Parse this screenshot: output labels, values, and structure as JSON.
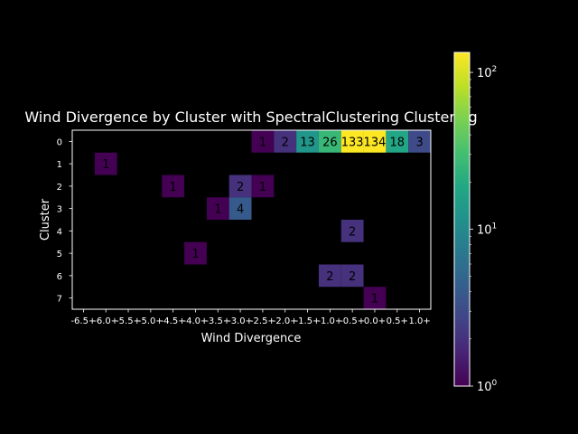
{
  "chart_data": {
    "type": "heatmap",
    "title": "Wind Divergence by Cluster with SpectralClustering Clustering",
    "xlabel": "Wind Divergence",
    "ylabel": "Cluster",
    "x_categories": [
      "-6.5+",
      "-6.0+",
      "-5.5+",
      "-5.0+",
      "-4.5+",
      "-4.0+",
      "-3.5+",
      "-3.0+",
      "-2.5+",
      "-2.0+",
      "-1.5+",
      "-1.0+",
      "-0.5+",
      "0.0+",
      "0.5+",
      "1.0+"
    ],
    "y_categories": [
      "0",
      "1",
      "2",
      "3",
      "4",
      "5",
      "6",
      "7"
    ],
    "cells": [
      {
        "row": "0",
        "col": "-2.5+",
        "value": 1
      },
      {
        "row": "0",
        "col": "-2.0+",
        "value": 2
      },
      {
        "row": "0",
        "col": "-1.5+",
        "value": 13
      },
      {
        "row": "0",
        "col": "-1.0+",
        "value": 26
      },
      {
        "row": "0",
        "col": "-0.5+",
        "value": 133
      },
      {
        "row": "0",
        "col": "0.0+",
        "value": 134
      },
      {
        "row": "0",
        "col": "0.5+",
        "value": 18
      },
      {
        "row": "0",
        "col": "1.0+",
        "value": 3
      },
      {
        "row": "1",
        "col": "-6.0+",
        "value": 1
      },
      {
        "row": "2",
        "col": "-4.5+",
        "value": 1
      },
      {
        "row": "2",
        "col": "-3.0+",
        "value": 2
      },
      {
        "row": "2",
        "col": "-2.5+",
        "value": 1
      },
      {
        "row": "3",
        "col": "-3.5+",
        "value": 1
      },
      {
        "row": "3",
        "col": "-3.0+",
        "value": 4
      },
      {
        "row": "4",
        "col": "-0.5+",
        "value": 2
      },
      {
        "row": "5",
        "col": "-4.0+",
        "value": 1
      },
      {
        "row": "6",
        "col": "-1.0+",
        "value": 2
      },
      {
        "row": "6",
        "col": "-0.5+",
        "value": 2
      },
      {
        "row": "7",
        "col": "0.0+",
        "value": 1
      }
    ],
    "color_scale": "log",
    "colormap": "viridis",
    "colorbar_range": [
      1,
      134
    ],
    "colorbar_ticks": [
      {
        "label": "10",
        "exp": "0",
        "value": 1
      },
      {
        "label": "10",
        "exp": "1",
        "value": 10
      },
      {
        "label": "10",
        "exp": "2",
        "value": 100
      }
    ],
    "empty_cell_color": "#000000",
    "grid": false
  }
}
